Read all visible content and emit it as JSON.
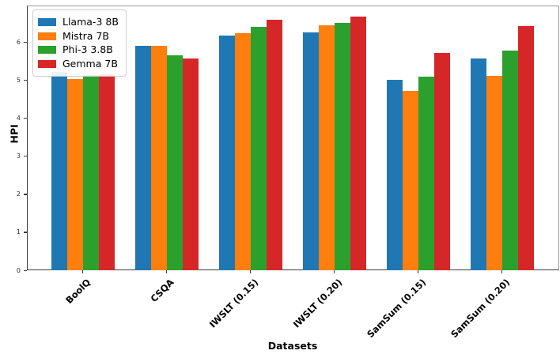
{
  "chart_data": {
    "type": "bar",
    "title": "",
    "xlabel": "Datasets",
    "ylabel": "HPI",
    "categories": [
      "BoolQ",
      "CSQA",
      "IWSLT (0.15)",
      "IWSLT (0.20)",
      "SamSum (0.15)",
      "SamSum (0.20)"
    ],
    "series": [
      {
        "name": "Llama-3 8B",
        "color": "#1f77b4",
        "values": [
          5.22,
          5.9,
          6.17,
          6.26,
          5.02,
          5.57
        ]
      },
      {
        "name": "Mistra 7B",
        "color": "#ff7f0e",
        "values": [
          5.04,
          5.9,
          6.24,
          6.45,
          4.73,
          5.12
        ]
      },
      {
        "name": "Phi-3 3.8B",
        "color": "#2ca02c",
        "values": [
          5.14,
          5.66,
          6.4,
          6.52,
          5.1,
          5.78
        ]
      },
      {
        "name": "Gemma 7B",
        "color": "#d62728",
        "values": [
          5.16,
          5.57,
          6.59,
          6.67,
          5.72,
          6.42
        ]
      }
    ],
    "yticks": [
      0,
      1,
      2,
      3,
      4,
      5,
      6
    ],
    "ylim": [
      0,
      6.97
    ],
    "legend_position": "upper left",
    "grid": false
  }
}
